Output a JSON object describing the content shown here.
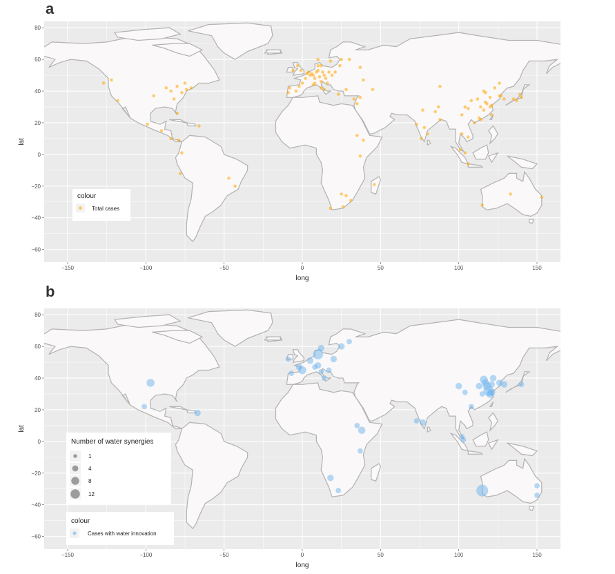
{
  "panels": [
    {
      "letter": "a",
      "xlabel": "long",
      "ylabel": "lat",
      "x_ticks": [
        -150,
        -100,
        -50,
        0,
        50,
        100,
        150
      ],
      "y_ticks": [
        -60,
        -40,
        -20,
        0,
        20,
        40,
        60,
        80
      ],
      "legend_colour_title": "colour",
      "legend_colour_label": "Total cases",
      "point_color": "#FFA500"
    },
    {
      "letter": "b",
      "xlabel": "long",
      "ylabel": "lat",
      "x_ticks": [
        -150,
        -100,
        -50,
        0,
        50,
        100,
        150
      ],
      "y_ticks": [
        -60,
        -40,
        -20,
        0,
        20,
        40,
        60,
        80
      ],
      "legend_size_title": "Number of water synergies",
      "legend_size_values": [
        1,
        4,
        8,
        12
      ],
      "legend_colour_title": "colour",
      "legend_colour_label": "Cases with water innovation",
      "point_color": "#6CB4EE"
    }
  ],
  "chart_data": [
    {
      "type": "scatter",
      "xlabel": "long",
      "ylabel": "lat",
      "xlim": [
        -165,
        165
      ],
      "ylim": [
        -68,
        84
      ],
      "legend": "bottom-left",
      "series": [
        {
          "name": "Total cases",
          "points": [
            [
              -127,
              45
            ],
            [
              -118,
              34
            ],
            [
              -122,
              47
            ],
            [
              -95,
              37
            ],
            [
              -87,
              42
            ],
            [
              -84,
              40
            ],
            [
              -80,
              43
            ],
            [
              -77,
              39
            ],
            [
              -74,
              41
            ],
            [
              -71,
              42
            ],
            [
              -75,
              45
            ],
            [
              -82,
              35
            ],
            [
              -80,
              26
            ],
            [
              -99,
              19
            ],
            [
              -90,
              15
            ],
            [
              -84,
              10
            ],
            [
              -66,
              18
            ],
            [
              -79,
              9
            ],
            [
              -77,
              1
            ],
            [
              -47,
              -15
            ],
            [
              -43,
              -20
            ],
            [
              -78,
              -12
            ],
            [
              -9,
              39
            ],
            [
              -8,
              42
            ],
            [
              -4,
              40
            ],
            [
              -2,
              43
            ],
            [
              0,
              45
            ],
            [
              2,
              48
            ],
            [
              3,
              51
            ],
            [
              4,
              52
            ],
            [
              5,
              50
            ],
            [
              6,
              51
            ],
            [
              7,
              50
            ],
            [
              8,
              48
            ],
            [
              9,
              52
            ],
            [
              10,
              53
            ],
            [
              11,
              49
            ],
            [
              12,
              46
            ],
            [
              13,
              52
            ],
            [
              14,
              50
            ],
            [
              15,
              48
            ],
            [
              17,
              52
            ],
            [
              19,
              50
            ],
            [
              21,
              52
            ],
            [
              24,
              56
            ],
            [
              10,
              56
            ],
            [
              12,
              56
            ],
            [
              18,
              59
            ],
            [
              25,
              60
            ],
            [
              30,
              60
            ],
            [
              10,
              60
            ],
            [
              -1,
              53
            ],
            [
              -3,
              56
            ],
            [
              -6,
              53
            ],
            [
              7,
              44
            ],
            [
              8,
              45
            ],
            [
              12,
              42
            ],
            [
              14,
              41
            ],
            [
              16,
              45
            ],
            [
              23,
              38
            ],
            [
              28,
              41
            ],
            [
              35,
              32
            ],
            [
              33,
              35
            ],
            [
              37,
              36
            ],
            [
              39,
              47
            ],
            [
              37,
              55
            ],
            [
              45,
              41
            ],
            [
              35,
              12
            ],
            [
              39,
              9
            ],
            [
              37,
              -1
            ],
            [
              46,
              -19
            ],
            [
              28,
              -26
            ],
            [
              18,
              -34
            ],
            [
              31,
              -29
            ],
            [
              26,
              -33
            ],
            [
              25,
              -25
            ],
            [
              77,
              28
            ],
            [
              73,
              19
            ],
            [
              80,
              13
            ],
            [
              78,
              17
            ],
            [
              88,
              22
            ],
            [
              76,
              10
            ],
            [
              85,
              27
            ],
            [
              102,
              13
            ],
            [
              106,
              11
            ],
            [
              101,
              3
            ],
            [
              104,
              1
            ],
            [
              106,
              -6
            ],
            [
              114,
              22
            ],
            [
              113,
              23
            ],
            [
              116,
              28
            ],
            [
              114,
              30
            ],
            [
              112,
              35
            ],
            [
              116,
              40
            ],
            [
              117,
              39
            ],
            [
              118,
              32
            ],
            [
              120,
              30
            ],
            [
              121,
              31
            ],
            [
              126,
              37
            ],
            [
              127,
              37
            ],
            [
              129,
              35
            ],
            [
              135,
              35
            ],
            [
              140,
              36
            ],
            [
              139,
              38
            ],
            [
              137,
              34
            ],
            [
              123,
              42
            ],
            [
              121,
              25
            ],
            [
              108,
              34
            ],
            [
              104,
              30
            ],
            [
              102,
              25
            ],
            [
              106,
              29
            ],
            [
              110,
              20
            ],
            [
              88,
              43
            ],
            [
              87,
              30
            ],
            [
              115,
              -32
            ],
            [
              133,
              -25
            ],
            [
              153,
              -27
            ],
            [
              117,
              33
            ],
            [
              120,
              36
            ],
            [
              126,
              45
            ]
          ]
        }
      ]
    },
    {
      "type": "scatter",
      "xlabel": "long",
      "ylabel": "lat",
      "xlim": [
        -165,
        165
      ],
      "ylim": [
        -68,
        84
      ],
      "legend": "bottom-left",
      "series": [
        {
          "name": "Cases with water innovation",
          "points": [
            [
              -97,
              37,
              4
            ],
            [
              -101,
              22,
              1
            ],
            [
              -67,
              18,
              2
            ],
            [
              -9,
              52,
              1
            ],
            [
              -2,
              47,
              2
            ],
            [
              0,
              45,
              4
            ],
            [
              5,
              51,
              2
            ],
            [
              8,
              47,
              1
            ],
            [
              10,
              55,
              8
            ],
            [
              12,
              59,
              2
            ],
            [
              10,
              48,
              2
            ],
            [
              12,
              44,
              1
            ],
            [
              14,
              40,
              1
            ],
            [
              17,
              45,
              1
            ],
            [
              20,
              52,
              2
            ],
            [
              25,
              60,
              2
            ],
            [
              30,
              63,
              1
            ],
            [
              -7,
              43,
              1
            ],
            [
              35,
              10,
              1
            ],
            [
              38,
              7,
              3
            ],
            [
              37,
              -6,
              1
            ],
            [
              18,
              -23,
              2
            ],
            [
              23,
              -31,
              1
            ],
            [
              73,
              13,
              1
            ],
            [
              77,
              12,
              2
            ],
            [
              100,
              35,
              2
            ],
            [
              104,
              31,
              1
            ],
            [
              108,
              22,
              1
            ],
            [
              113,
              35,
              2
            ],
            [
              115,
              30,
              1
            ],
            [
              116,
              39,
              4
            ],
            [
              117,
              37,
              3
            ],
            [
              118,
              35,
              4
            ],
            [
              119,
              32,
              8
            ],
            [
              120,
              30,
              4
            ],
            [
              121,
              31,
              3
            ],
            [
              121,
              36,
              2
            ],
            [
              122,
              40,
              2
            ],
            [
              126,
              37,
              2
            ],
            [
              129,
              36,
              2
            ],
            [
              140,
              36,
              1
            ],
            [
              115,
              -31,
              12
            ],
            [
              150,
              -28,
              1
            ],
            [
              103,
              1,
              1
            ],
            [
              150,
              -34,
              1
            ],
            [
              102,
              3,
              1
            ]
          ]
        }
      ]
    }
  ]
}
